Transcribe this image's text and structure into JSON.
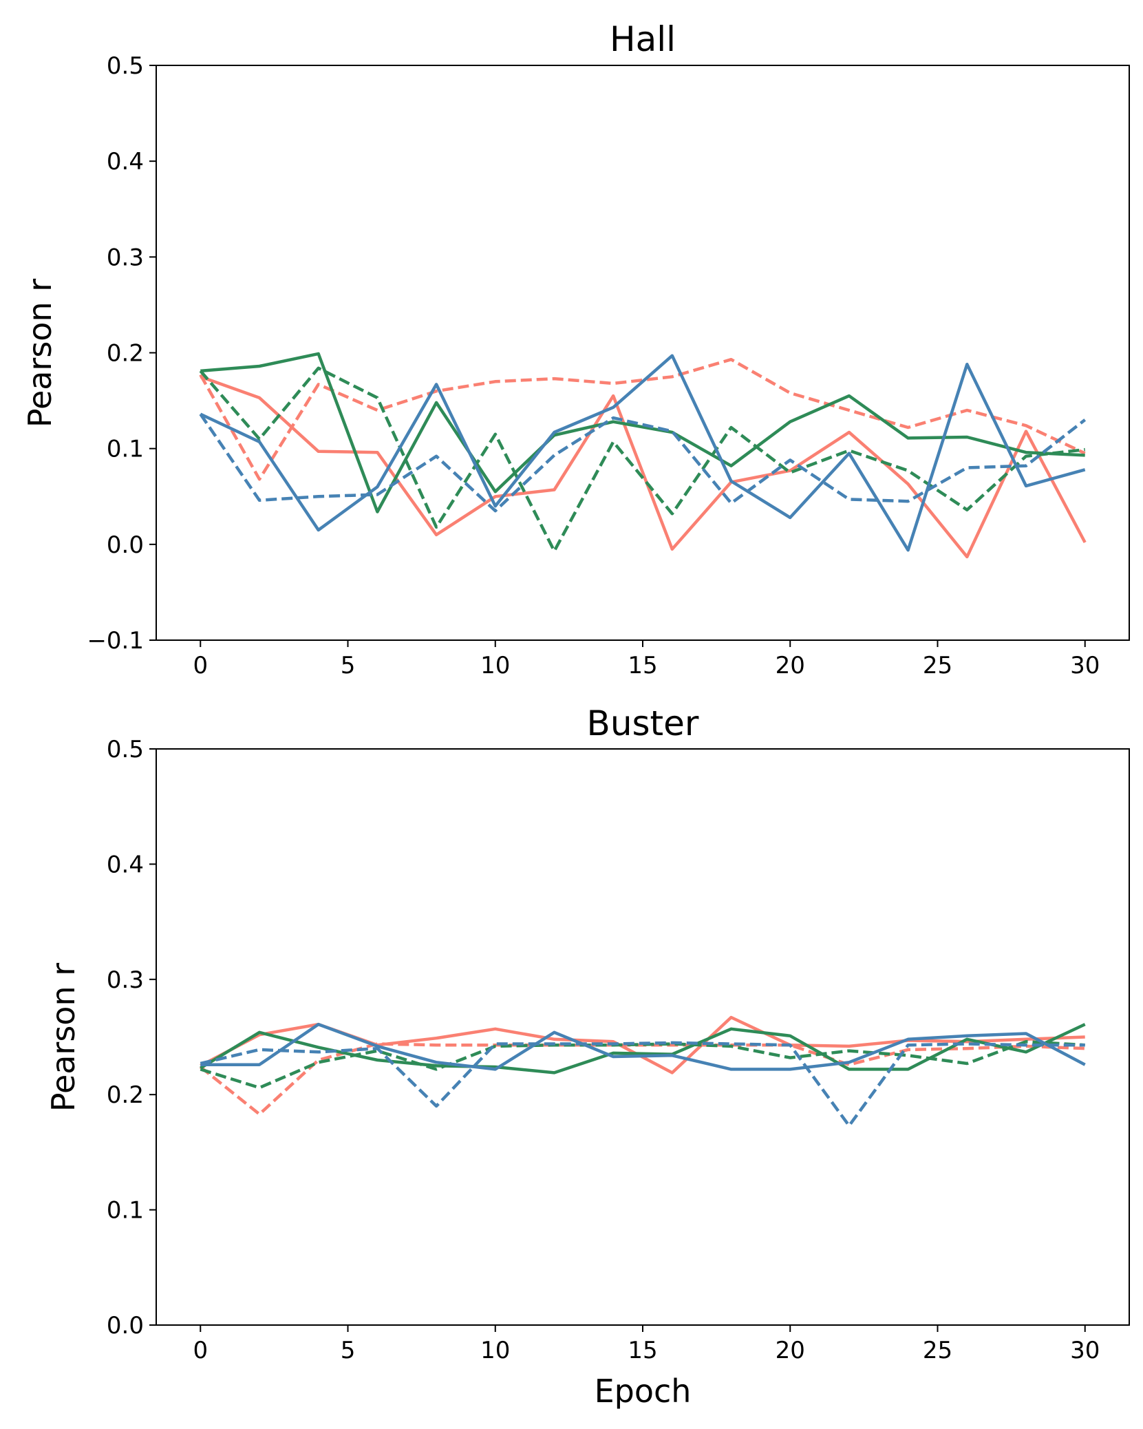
{
  "figure": {
    "xlabel": "Epoch"
  },
  "series_styles": [
    {
      "color": "#FA8072",
      "dash": "solid"
    },
    {
      "color": "#FA8072",
      "dash": "dashed"
    },
    {
      "color": "#2E8B57",
      "dash": "solid"
    },
    {
      "color": "#2E8B57",
      "dash": "dashed"
    },
    {
      "color": "#4682B4",
      "dash": "solid"
    },
    {
      "color": "#4682B4",
      "dash": "dashed"
    }
  ],
  "chart_data": [
    {
      "type": "line",
      "title": "Hall",
      "xlabel": "",
      "ylabel": "Pearson r",
      "xlim": [
        -1.5,
        31.5
      ],
      "ylim": [
        -0.1,
        0.5
      ],
      "xticks": [
        0,
        5,
        10,
        15,
        20,
        25,
        30
      ],
      "yticks": [
        "−0.1",
        "0.0",
        "0.1",
        "0.2",
        "0.3",
        "0.4",
        "0.5"
      ],
      "ytick_values": [
        -0.1,
        0.0,
        0.1,
        0.2,
        0.3,
        0.4,
        0.5
      ],
      "x": [
        0,
        2,
        4,
        6,
        8,
        10,
        12,
        14,
        16,
        18,
        20,
        22,
        24,
        26,
        28,
        30
      ],
      "series": [
        {
          "name": "salmon-solid",
          "values": [
            0.175,
            0.153,
            0.097,
            0.096,
            0.01,
            0.05,
            0.057,
            0.155,
            -0.005,
            0.065,
            0.077,
            0.117,
            0.063,
            -0.013,
            0.118,
            0.002
          ]
        },
        {
          "name": "salmon-dashed",
          "values": [
            0.177,
            0.068,
            0.167,
            0.14,
            0.16,
            0.17,
            0.173,
            0.168,
            0.175,
            0.193,
            0.158,
            0.14,
            0.122,
            0.14,
            0.124,
            0.095
          ]
        },
        {
          "name": "green-solid",
          "values": [
            0.181,
            0.186,
            0.199,
            0.034,
            0.148,
            0.055,
            0.114,
            0.128,
            0.117,
            0.082,
            0.128,
            0.155,
            0.111,
            0.112,
            0.096,
            0.093
          ]
        },
        {
          "name": "green-dashed",
          "values": [
            0.181,
            0.11,
            0.184,
            0.153,
            0.018,
            0.115,
            -0.007,
            0.107,
            0.032,
            0.122,
            0.075,
            0.098,
            0.077,
            0.036,
            0.092,
            0.099
          ]
        },
        {
          "name": "blue-solid",
          "values": [
            0.136,
            0.107,
            0.015,
            0.06,
            0.167,
            0.04,
            0.117,
            0.143,
            0.197,
            0.066,
            0.028,
            0.095,
            -0.006,
            0.188,
            0.061,
            0.078
          ]
        },
        {
          "name": "blue-dashed",
          "values": [
            0.136,
            0.046,
            0.05,
            0.052,
            0.092,
            0.035,
            0.093,
            0.132,
            0.118,
            0.043,
            0.088,
            0.047,
            0.045,
            0.08,
            0.082,
            0.13
          ]
        }
      ]
    },
    {
      "type": "line",
      "title": "Buster",
      "xlabel": "Epoch",
      "ylabel": "Pearson r",
      "xlim": [
        -1.5,
        31.5
      ],
      "ylim": [
        0.0,
        0.5
      ],
      "xticks": [
        0,
        5,
        10,
        15,
        20,
        25,
        30
      ],
      "yticks": [
        "0.0",
        "0.1",
        "0.2",
        "0.3",
        "0.4",
        "0.5"
      ],
      "ytick_values": [
        0.0,
        0.1,
        0.2,
        0.3,
        0.4,
        0.5
      ],
      "x": [
        0,
        2,
        4,
        6,
        8,
        10,
        12,
        14,
        16,
        18,
        20,
        22,
        24,
        26,
        28,
        30
      ],
      "series": [
        {
          "name": "salmon-solid",
          "values": [
            0.225,
            0.252,
            0.261,
            0.243,
            0.249,
            0.257,
            0.248,
            0.246,
            0.219,
            0.267,
            0.243,
            0.242,
            0.247,
            0.246,
            0.248,
            0.25
          ]
        },
        {
          "name": "salmon-dashed",
          "values": [
            0.224,
            0.183,
            0.23,
            0.244,
            0.243,
            0.243,
            0.243,
            0.243,
            0.243,
            0.243,
            0.243,
            0.226,
            0.239,
            0.24,
            0.242,
            0.24
          ]
        },
        {
          "name": "green-solid",
          "values": [
            0.223,
            0.254,
            0.241,
            0.23,
            0.225,
            0.224,
            0.219,
            0.236,
            0.235,
            0.257,
            0.251,
            0.222,
            0.222,
            0.248,
            0.237,
            0.261
          ]
        },
        {
          "name": "green-dashed",
          "values": [
            0.222,
            0.206,
            0.228,
            0.238,
            0.222,
            0.242,
            0.243,
            0.243,
            0.244,
            0.242,
            0.232,
            0.238,
            0.234,
            0.227,
            0.246,
            0.243
          ]
        },
        {
          "name": "blue-solid",
          "values": [
            0.226,
            0.226,
            0.261,
            0.242,
            0.228,
            0.222,
            0.254,
            0.233,
            0.234,
            0.222,
            0.222,
            0.228,
            0.248,
            0.251,
            0.253,
            0.226
          ]
        },
        {
          "name": "blue-dashed",
          "values": [
            0.227,
            0.239,
            0.237,
            0.24,
            0.19,
            0.244,
            0.244,
            0.244,
            0.245,
            0.244,
            0.243,
            0.173,
            0.243,
            0.244,
            0.243,
            0.243
          ]
        }
      ]
    }
  ]
}
